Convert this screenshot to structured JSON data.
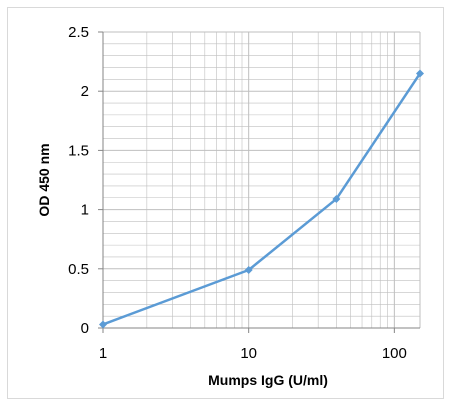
{
  "chart_data": {
    "type": "line",
    "title": "",
    "xlabel": "Mumps IgG (U/ml)",
    "ylabel": "OD 450 nm",
    "x_scale": "log",
    "xlim": [
      1,
      150
    ],
    "ylim": [
      0,
      2.5
    ],
    "x_ticks": [
      1,
      10,
      100
    ],
    "x_tick_labels": [
      "1",
      "10",
      "100"
    ],
    "y_ticks": [
      0,
      0.5,
      1,
      1.5,
      2,
      2.5
    ],
    "y_tick_labels": [
      "0",
      "0.5",
      "1",
      "1.5",
      "2",
      "2.5"
    ],
    "grid": true,
    "legend": "none",
    "series": [
      {
        "x": [
          1,
          10,
          40,
          150
        ],
        "y": [
          0.03,
          0.49,
          1.09,
          2.15
        ]
      }
    ],
    "colors": {
      "series": "#5b9bd5",
      "grid": "#bfbfbf",
      "axis": "#868686"
    }
  }
}
